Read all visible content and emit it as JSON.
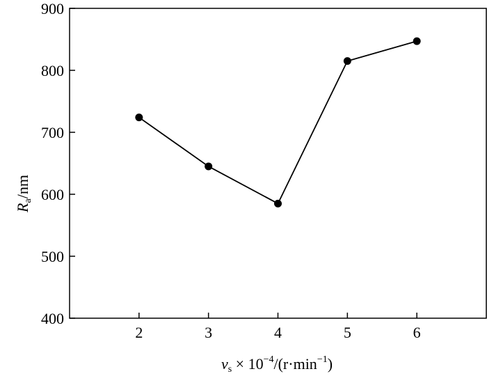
{
  "chart_data": {
    "type": "line",
    "x": [
      2,
      3,
      4,
      5,
      6
    ],
    "y": [
      724,
      645,
      585,
      815,
      847
    ],
    "xticks": [
      2,
      3,
      4,
      5,
      6
    ],
    "yticks": [
      400,
      500,
      600,
      700,
      800,
      900
    ],
    "xlim": [
      1,
      7
    ],
    "ylim": [
      400,
      900
    ],
    "grid": false,
    "marker": "circle",
    "line_color": "#000000",
    "xlabel": {
      "main": "v",
      "sub": "s",
      "mid": " × 10",
      "sup": "−4",
      "tail1": "/(r·min",
      "sup2": "−1",
      "tail2": ")"
    },
    "ylabel": {
      "main": "R",
      "sub": "a",
      "tail": "/nm"
    }
  }
}
